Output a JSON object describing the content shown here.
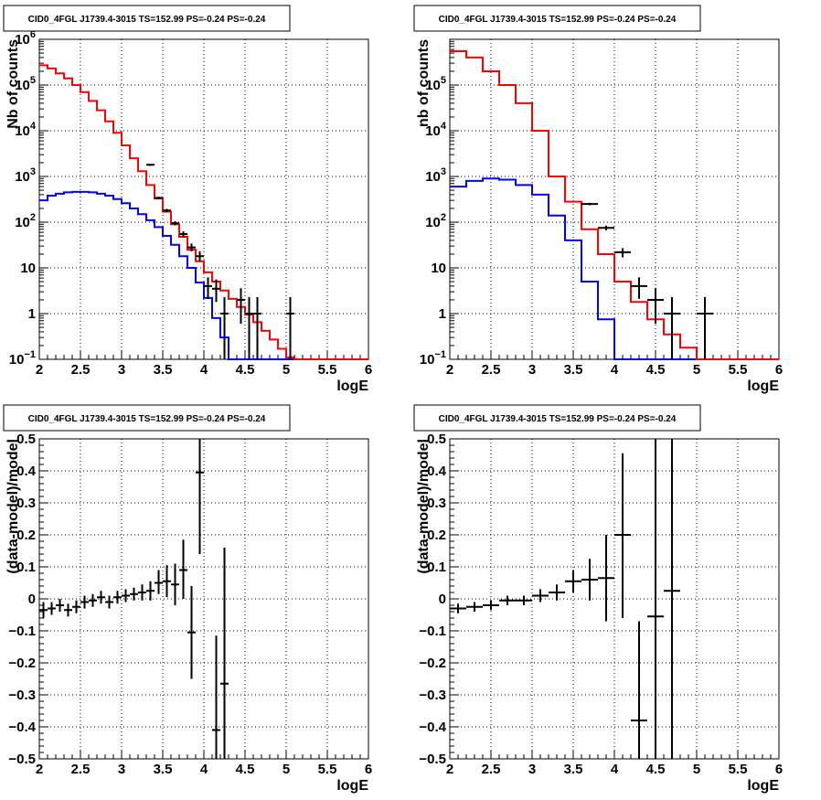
{
  "chart_data": [
    {
      "id": "p1",
      "type": "line",
      "title": "CID0_4FGL J1739.4-3015 TS=152.99 PS=-0.24 PS=-0.24",
      "xlabel": "logE",
      "ylabel": "Nb of counts",
      "xlim": [
        2,
        6
      ],
      "ylim": [
        0.1,
        1000000
      ],
      "yscale": "log",
      "grid": true,
      "xticks": [
        "2",
        "2.5",
        "3",
        "3.5",
        "4",
        "4.5",
        "5",
        "5.5",
        "6"
      ],
      "yticks": [
        {
          "v": 0.1,
          "base": "10",
          "exp": "−1"
        },
        {
          "v": 1,
          "base": "1",
          "exp": ""
        },
        {
          "v": 10,
          "base": "10",
          "exp": ""
        },
        {
          "v": 100,
          "base": "10",
          "exp": "2"
        },
        {
          "v": 1000,
          "base": "10",
          "exp": "3"
        },
        {
          "v": 10000,
          "base": "10",
          "exp": "4"
        },
        {
          "v": 100000,
          "base": "10",
          "exp": "5"
        },
        {
          "v": 1000000,
          "base": "10",
          "exp": "6"
        }
      ],
      "bin_edges": [
        2,
        2.1,
        2.2,
        2.3,
        2.4,
        2.5,
        2.6,
        2.7,
        2.8,
        2.9,
        3,
        3.1,
        3.2,
        3.3,
        3.4,
        3.5,
        3.6,
        3.7,
        3.8,
        3.9,
        4,
        4.1,
        4.2,
        4.3,
        4.4,
        4.5,
        4.6,
        4.7,
        4.8,
        4.9,
        5,
        5.1,
        5.2,
        5.3,
        5.4,
        5.5,
        5.6,
        5.7,
        5.8,
        5.9,
        6
      ],
      "series": [
        {
          "color": "#0000ff",
          "step": [
            300,
            380,
            420,
            450,
            460,
            460,
            450,
            420,
            380,
            320,
            260,
            200,
            150,
            110,
            78,
            50,
            32,
            18,
            10,
            4.8,
            2.2,
            0.8,
            0.3,
            0.1,
            0.1,
            0.1,
            0.1,
            0.1,
            0.1,
            0.1,
            0.1,
            0.1,
            0.1,
            0.1,
            0.1,
            0.1,
            0.1,
            0.1,
            0.1,
            0.1
          ]
        },
        {
          "color": "#ff0000",
          "step": [
            270000,
            230000,
            180000,
            140000,
            100000,
            70000,
            45000,
            28000,
            16000,
            9000,
            4800,
            2500,
            1300,
            650,
            330,
            170,
            90,
            48,
            25,
            14,
            8,
            5,
            3.2,
            2.1,
            1.4,
            0.95,
            0.65,
            0.42,
            0.27,
            0.17,
            0.11,
            0.1,
            0.1,
            0.1,
            0.1,
            0.1,
            0.1,
            0.1,
            0.1,
            0.1
          ]
        }
      ],
      "points": [
        {
          "x": 3.35,
          "y": 1800,
          "lo": 1700,
          "hi": 1900
        },
        {
          "x": 3.45,
          "y": 340,
          "lo": 320,
          "hi": 360
        },
        {
          "x": 3.55,
          "y": 180,
          "lo": 165,
          "hi": 195
        },
        {
          "x": 3.65,
          "y": 95,
          "lo": 85,
          "hi": 105
        },
        {
          "x": 3.75,
          "y": 55,
          "lo": 47,
          "hi": 63
        },
        {
          "x": 3.85,
          "y": 28,
          "lo": 23,
          "hi": 34
        },
        {
          "x": 3.95,
          "y": 18,
          "lo": 14,
          "hi": 23
        },
        {
          "x": 4.05,
          "y": 4,
          "lo": 2.1,
          "hi": 6.2
        },
        {
          "x": 4.15,
          "y": 3.5,
          "lo": 1.8,
          "hi": 5.6
        },
        {
          "x": 4.25,
          "y": 1,
          "lo": 0.1,
          "hi": 2.3
        },
        {
          "x": 4.45,
          "y": 2,
          "lo": 0.6,
          "hi": 3.6
        },
        {
          "x": 4.55,
          "y": 1,
          "lo": 0.1,
          "hi": 2.3
        },
        {
          "x": 4.65,
          "y": 1,
          "lo": 0.1,
          "hi": 2.3
        },
        {
          "x": 5.05,
          "y": 1,
          "lo": 0.1,
          "hi": 2.3
        }
      ]
    },
    {
      "id": "p2",
      "type": "line",
      "title": "CID0_4FGL J1739.4-3015 TS=152.99 PS=-0.24 PS=-0.24",
      "xlabel": "logE",
      "ylabel": "nb of counts",
      "xlim": [
        2,
        6
      ],
      "ylim": [
        0.1,
        1000000
      ],
      "yscale": "log",
      "grid": true,
      "xticks": [
        "2",
        "2.5",
        "3",
        "3.5",
        "4",
        "4.5",
        "5",
        "5.5",
        "6"
      ],
      "yticks": [
        {
          "v": 0.1,
          "base": "10",
          "exp": "−1"
        },
        {
          "v": 1,
          "base": "1",
          "exp": ""
        },
        {
          "v": 10,
          "base": "10",
          "exp": ""
        },
        {
          "v": 100,
          "base": "10",
          "exp": "2"
        },
        {
          "v": 1000,
          "base": "10",
          "exp": "3"
        },
        {
          "v": 10000,
          "base": "10",
          "exp": "4"
        },
        {
          "v": 100000,
          "base": "10",
          "exp": "5"
        }
      ],
      "bin_edges": [
        2,
        2.2,
        2.4,
        2.6,
        2.8,
        3,
        3.2,
        3.4,
        3.6,
        3.8,
        4,
        4.2,
        4.4,
        4.6,
        4.8,
        5,
        5.2,
        5.4,
        5.6,
        5.8,
        6
      ],
      "series": [
        {
          "color": "#0000ff",
          "step": [
            600,
            800,
            900,
            850,
            650,
            400,
            140,
            40,
            5,
            0.75,
            0.1,
            0.1,
            0.1,
            0.1,
            0.1,
            0.1,
            0.1,
            0.1,
            0.1,
            0.1
          ]
        },
        {
          "color": "#ff0000",
          "step": [
            550000,
            400000,
            200000,
            100000,
            40000,
            10000,
            1000,
            280,
            70,
            20,
            5,
            1.8,
            0.75,
            0.35,
            0.18,
            0.1,
            0.1,
            0.1,
            0.1,
            0.1
          ]
        }
      ],
      "points": [
        {
          "x": 3.7,
          "y": 250,
          "lo": 235,
          "hi": 265
        },
        {
          "x": 3.9,
          "y": 75,
          "lo": 66,
          "hi": 84
        },
        {
          "x": 4.1,
          "y": 22,
          "lo": 17,
          "hi": 27
        },
        {
          "x": 4.3,
          "y": 4,
          "lo": 2.1,
          "hi": 6.2
        },
        {
          "x": 4.5,
          "y": 2,
          "lo": 0.6,
          "hi": 3.6
        },
        {
          "x": 4.7,
          "y": 1,
          "lo": 0.1,
          "hi": 2.3
        },
        {
          "x": 5.1,
          "y": 1,
          "lo": 0.1,
          "hi": 2.3
        }
      ]
    },
    {
      "id": "p3",
      "type": "scatter",
      "title": "CID0_4FGL J1739.4-3015 TS=152.99 PS=-0.24 PS=-0.24",
      "xlabel": "logE",
      "ylabel": "(data-model)/model",
      "xlim": [
        2,
        6
      ],
      "ylim": [
        -0.5,
        0.5
      ],
      "yscale": "linear",
      "grid": true,
      "xticks": [
        "2",
        "2.5",
        "3",
        "3.5",
        "4",
        "4.5",
        "5",
        "5.5",
        "6"
      ],
      "yticks": [
        "−0.5",
        "−0.4",
        "−0.3",
        "−0.2",
        "−0.1",
        "0",
        "0.1",
        "0.2",
        "0.3",
        "0.4",
        "0.5"
      ],
      "bin_width": 0.1,
      "points": [
        {
          "x": 2.05,
          "y": -0.035,
          "lo": -0.06,
          "hi": -0.01
        },
        {
          "x": 2.15,
          "y": -0.03,
          "lo": -0.05,
          "hi": -0.01
        },
        {
          "x": 2.25,
          "y": -0.02,
          "lo": -0.04,
          "hi": 0
        },
        {
          "x": 2.35,
          "y": -0.035,
          "lo": -0.055,
          "hi": -0.015
        },
        {
          "x": 2.45,
          "y": -0.025,
          "lo": -0.045,
          "hi": -0.005
        },
        {
          "x": 2.55,
          "y": -0.01,
          "lo": -0.03,
          "hi": 0.01
        },
        {
          "x": 2.65,
          "y": -0.005,
          "lo": -0.025,
          "hi": 0.015
        },
        {
          "x": 2.75,
          "y": 0.005,
          "lo": -0.015,
          "hi": 0.025
        },
        {
          "x": 2.85,
          "y": -0.01,
          "lo": -0.03,
          "hi": 0.01
        },
        {
          "x": 2.95,
          "y": 0.005,
          "lo": -0.015,
          "hi": 0.025
        },
        {
          "x": 3.05,
          "y": 0.01,
          "lo": -0.01,
          "hi": 0.03
        },
        {
          "x": 3.15,
          "y": 0.015,
          "lo": -0.005,
          "hi": 0.035
        },
        {
          "x": 3.25,
          "y": 0.02,
          "lo": -0.005,
          "hi": 0.045
        },
        {
          "x": 3.35,
          "y": 0.025,
          "lo": -0.005,
          "hi": 0.055
        },
        {
          "x": 3.45,
          "y": 0.05,
          "lo": 0.015,
          "hi": 0.09
        },
        {
          "x": 3.55,
          "y": 0.055,
          "lo": 0.005,
          "hi": 0.105
        },
        {
          "x": 3.65,
          "y": 0.045,
          "lo": -0.02,
          "hi": 0.11
        },
        {
          "x": 3.75,
          "y": 0.09,
          "lo": 0,
          "hi": 0.185
        },
        {
          "x": 3.85,
          "y": -0.105,
          "lo": -0.25,
          "hi": 0.04
        },
        {
          "x": 3.95,
          "y": 0.395,
          "lo": 0.14,
          "hi": 0.5
        },
        {
          "x": 4.15,
          "y": -0.41,
          "lo": -0.5,
          "hi": -0.115
        },
        {
          "x": 4.25,
          "y": -0.265,
          "lo": -0.5,
          "hi": 0.16
        }
      ]
    },
    {
      "id": "p4",
      "type": "scatter",
      "title": "CID0_4FGL J1739.4-3015 TS=152.99 PS=-0.24 PS=-0.24",
      "xlabel": "logE",
      "ylabel": "(data-model)/model",
      "xlim": [
        2,
        6
      ],
      "ylim": [
        -0.5,
        0.5
      ],
      "yscale": "linear",
      "grid": true,
      "xticks": [
        "2",
        "2.5",
        "3",
        "3.5",
        "4",
        "4.5",
        "5",
        "5.5",
        "6"
      ],
      "yticks": [
        "−0.5",
        "−0.4",
        "−0.3",
        "−0.2",
        "−0.1",
        "0",
        "0.1",
        "0.2",
        "0.3",
        "0.4",
        "0.5"
      ],
      "bin_width": 0.2,
      "points": [
        {
          "x": 2.1,
          "y": -0.03,
          "lo": -0.045,
          "hi": -0.015
        },
        {
          "x": 2.3,
          "y": -0.025,
          "lo": -0.04,
          "hi": -0.01
        },
        {
          "x": 2.5,
          "y": -0.02,
          "lo": -0.035,
          "hi": -0.005
        },
        {
          "x": 2.7,
          "y": -0.005,
          "lo": -0.02,
          "hi": 0.01
        },
        {
          "x": 2.9,
          "y": -0.005,
          "lo": -0.02,
          "hi": 0.01
        },
        {
          "x": 3.1,
          "y": 0.01,
          "lo": -0.01,
          "hi": 0.03
        },
        {
          "x": 3.3,
          "y": 0.02,
          "lo": -0.005,
          "hi": 0.045
        },
        {
          "x": 3.5,
          "y": 0.055,
          "lo": 0.02,
          "hi": 0.09
        },
        {
          "x": 3.7,
          "y": 0.06,
          "lo": -0.005,
          "hi": 0.125
        },
        {
          "x": 3.9,
          "y": 0.065,
          "lo": -0.07,
          "hi": 0.2
        },
        {
          "x": 4.1,
          "y": 0.2,
          "lo": -0.06,
          "hi": 0.455
        },
        {
          "x": 4.3,
          "y": -0.38,
          "lo": -0.5,
          "hi": -0.07
        },
        {
          "x": 4.5,
          "y": -0.055,
          "lo": -0.5,
          "hi": 0.5
        },
        {
          "x": 4.7,
          "y": 0.025,
          "lo": -0.5,
          "hi": 0.5
        }
      ]
    }
  ]
}
